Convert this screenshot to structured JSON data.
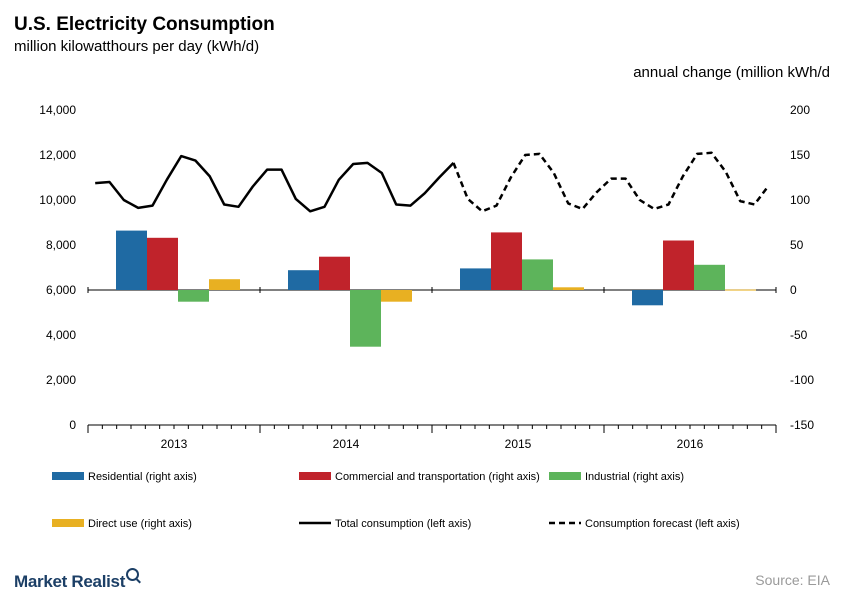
{
  "header": {
    "title": "U.S. Electricity Consumption",
    "subtitle": "million kilowatthours per day (kWh/d)",
    "right_axis_unit": "annual change (million kWh/d"
  },
  "footer": {
    "brand": "Market Realist",
    "source": "Source: EIA"
  },
  "chart_data": {
    "type": "bar",
    "subtype": "bar-line-combo",
    "title": "U.S. Electricity Consumption",
    "left_axis": {
      "label": "million kilowatthours per day (kWh/d)",
      "range": [
        0,
        14000
      ],
      "ticks": [
        "0",
        "2,000",
        "4,000",
        "6,000",
        "8,000",
        "10,000",
        "12,000",
        "14,000"
      ]
    },
    "right_axis": {
      "label": "annual change (million kWh/d",
      "range": [
        -150,
        200
      ],
      "ticks": [
        "-150",
        "-100",
        "-50",
        "0",
        "50",
        "100",
        "150",
        "200"
      ]
    },
    "categories": [
      "2013",
      "2014",
      "2015",
      "2016"
    ],
    "bar_series": [
      {
        "name": "Residential (right axis)",
        "color": "#1f6aa3",
        "values": [
          66,
          22,
          24,
          -17
        ]
      },
      {
        "name": "Commercial and transportation (right axis)",
        "color": "#c0232b",
        "values": [
          58,
          37,
          64,
          55
        ]
      },
      {
        "name": "Industrial (right axis)",
        "color": "#5db45b",
        "values": [
          -13,
          -63,
          34,
          28
        ]
      },
      {
        "name": "Direct use (right axis)",
        "color": "#e8b022",
        "values": [
          12,
          -13,
          3,
          0.5
        ]
      }
    ],
    "line_series": [
      {
        "name": "Total consumption (left axis)",
        "style": "solid",
        "color": "#000000",
        "x": [
          "2013-01",
          "2013-02",
          "2013-03",
          "2013-04",
          "2013-05",
          "2013-06",
          "2013-07",
          "2013-08",
          "2013-09",
          "2013-10",
          "2013-11",
          "2013-12",
          "2014-01",
          "2014-02",
          "2014-03",
          "2014-04",
          "2014-05",
          "2014-06",
          "2014-07",
          "2014-08",
          "2014-09",
          "2014-10",
          "2014-11",
          "2014-12",
          "2015-01",
          "2015-02"
        ],
        "values": [
          10750,
          10800,
          10000,
          9650,
          9750,
          10900,
          11950,
          11750,
          11050,
          9800,
          9700,
          10600,
          11350,
          11350,
          10050,
          9500,
          9700,
          10900,
          11600,
          11650,
          11200,
          9800,
          9750,
          10300,
          11000,
          11650
        ]
      },
      {
        "name": "Consumption forecast (left axis)",
        "style": "dashed",
        "color": "#000000",
        "x": [
          "2015-02",
          "2015-03",
          "2015-04",
          "2015-05",
          "2015-06",
          "2015-07",
          "2015-08",
          "2015-09",
          "2015-10",
          "2015-11",
          "2015-12",
          "2016-01",
          "2016-02",
          "2016-03",
          "2016-04",
          "2016-05",
          "2016-06",
          "2016-07",
          "2016-08",
          "2016-09",
          "2016-10",
          "2016-11",
          "2016-12"
        ],
        "values": [
          11650,
          10050,
          9500,
          9750,
          11000,
          12000,
          12050,
          11200,
          9850,
          9600,
          10350,
          10950,
          10950,
          10000,
          9600,
          9800,
          11050,
          12050,
          12100,
          11250,
          9950,
          9800,
          10650
        ]
      }
    ],
    "legend": [
      {
        "label": "Residential (right axis)",
        "kind": "bar",
        "color": "#1f6aa3"
      },
      {
        "label": "Commercial and transportation (right axis)",
        "kind": "bar",
        "color": "#c0232b"
      },
      {
        "label": "Industrial (right axis)",
        "kind": "bar",
        "color": "#5db45b"
      },
      {
        "label": "Direct use (right axis)",
        "kind": "bar",
        "color": "#e8b022"
      },
      {
        "label": "Total consumption (left axis)",
        "kind": "solid-line",
        "color": "#000000"
      },
      {
        "label": "Consumption forecast (left axis)",
        "kind": "dashed-line",
        "color": "#000000"
      }
    ],
    "legend_placement": "bottom",
    "grid": false
  }
}
